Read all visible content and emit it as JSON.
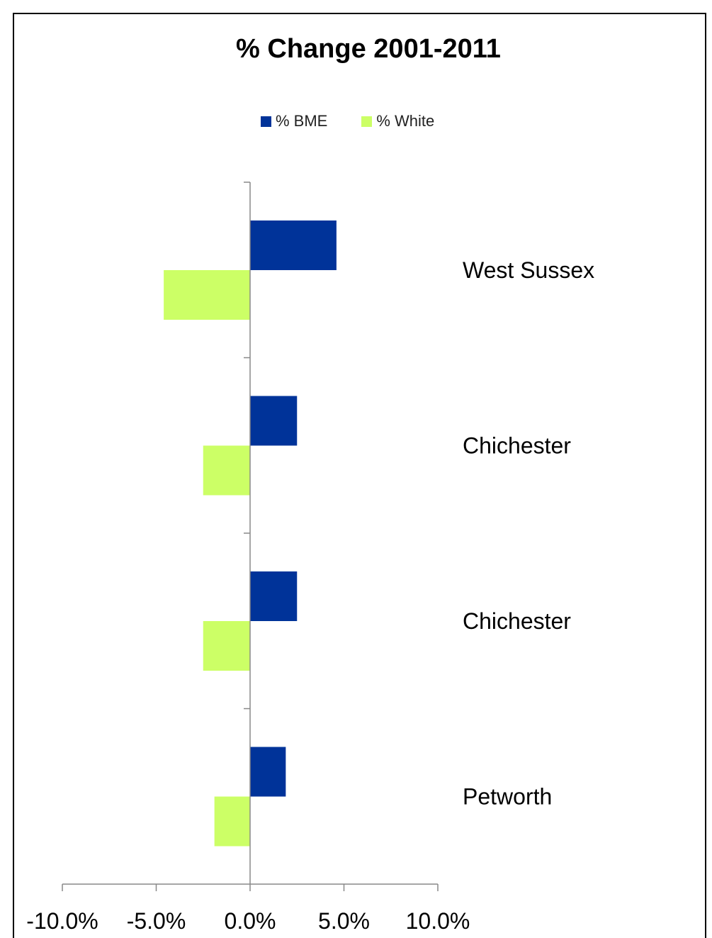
{
  "colors": {
    "bme": "#003399",
    "white": "#CCFF66",
    "axis": "#888888",
    "background": "#ffffff",
    "frame": "#000000"
  },
  "chart_data": {
    "type": "bar",
    "orientation": "horizontal",
    "title": "% Change 2001-2011",
    "categories": [
      "West Sussex",
      "Chichester",
      "Chichester",
      "Petworth"
    ],
    "series": [
      {
        "name": "% BME",
        "values": [
          4.6,
          2.5,
          2.5,
          1.9
        ]
      },
      {
        "name": "% White",
        "values": [
          -4.6,
          -2.5,
          -2.5,
          -1.9
        ]
      }
    ],
    "xlim": [
      -10,
      10
    ],
    "xticks": [
      -10,
      -5,
      0,
      5,
      10
    ],
    "xtick_labels": [
      "-10.0%",
      "-5.0%",
      "0.0%",
      "5.0%",
      "10.0%"
    ],
    "unit": "%",
    "grid": false,
    "legend": "top"
  }
}
